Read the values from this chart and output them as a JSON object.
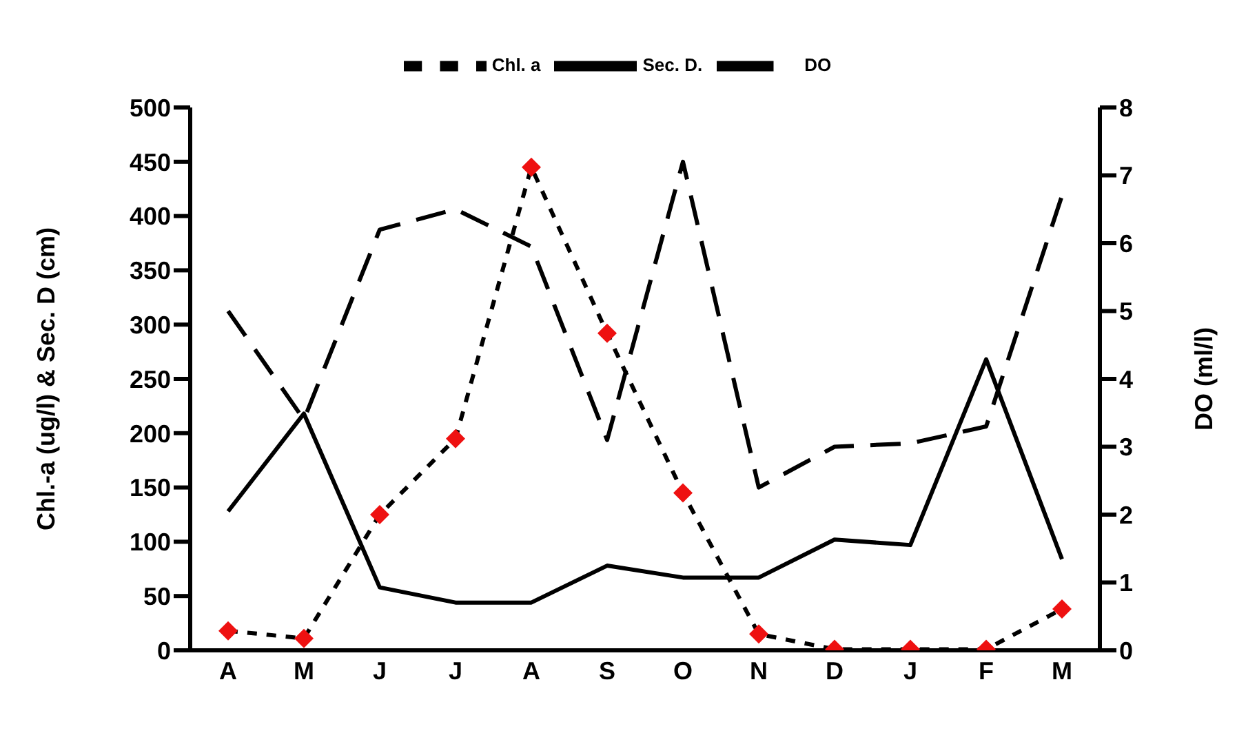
{
  "chart_data": {
    "type": "line",
    "categories": [
      "A",
      "M",
      "J",
      "J",
      "A",
      "S",
      "O",
      "N",
      "D",
      "J",
      "F",
      "M"
    ],
    "ylabel": "Chl.-a (ug/l) & Sec. D (cm)",
    "y2label": "DO (ml/l)",
    "ylim": [
      0,
      500
    ],
    "yticks": [
      0,
      50,
      100,
      150,
      200,
      250,
      300,
      350,
      400,
      450,
      500
    ],
    "y2lim": [
      0,
      8
    ],
    "y2ticks": [
      0,
      1,
      2,
      3,
      4,
      5,
      6,
      7,
      8
    ],
    "grid": false,
    "legend": "top",
    "series": [
      {
        "name": "Chl. a",
        "color": "#000000",
        "colors": [
          "#ee1111",
          "#ee1111",
          "#ee1111",
          "#ee1111",
          "#ee1111",
          "#ee1111",
          "#ee1111",
          "#ee1111",
          "#ee1111",
          "#ee1111",
          "#ee1111",
          "#ee1111"
        ],
        "marker": "diamond",
        "line_style": "dotted",
        "values": [
          18,
          11,
          125,
          195,
          445,
          292,
          145,
          15,
          1,
          1,
          1,
          38
        ]
      },
      {
        "name": "Sec. D.",
        "color": "#000000",
        "marker": "none",
        "line_style": "solid",
        "values": [
          128,
          218,
          58,
          44,
          44,
          78,
          67,
          67,
          102,
          97,
          268,
          84
        ]
      },
      {
        "name": "DO",
        "color": "#000000",
        "marker": "none",
        "line_style": "dashed",
        "axis": "y2",
        "values": [
          5.0,
          3.4,
          6.2,
          6.5,
          5.95,
          3.1,
          7.2,
          2.4,
          3.0,
          3.05,
          3.3,
          6.7
        ]
      }
    ]
  }
}
